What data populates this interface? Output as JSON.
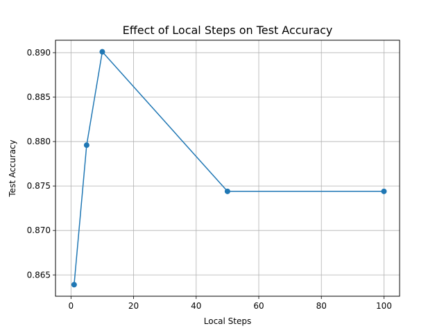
{
  "chart_data": {
    "type": "line",
    "title": "Effect of Local Steps on Test Accuracy",
    "xlabel": "Local Steps",
    "ylabel": "Test Accuracy",
    "xlim": [
      -4.95,
      105.0
    ],
    "ylim": [
      0.8626,
      0.8914
    ],
    "xticks": [
      0,
      20,
      40,
      60,
      80,
      100
    ],
    "yticks": [
      0.865,
      0.87,
      0.875,
      0.88,
      0.885,
      0.89
    ],
    "xtick_labels": [
      "0",
      "20",
      "40",
      "60",
      "80",
      "100"
    ],
    "ytick_labels": [
      "0.865",
      "0.870",
      "0.875",
      "0.880",
      "0.885",
      "0.890"
    ],
    "grid": true,
    "series": [
      {
        "color": "#1f77b4",
        "marker": "circle",
        "x": [
          1,
          5,
          10,
          50,
          100
        ],
        "y": [
          0.8639,
          0.8796,
          0.8901,
          0.8744,
          0.8744
        ]
      }
    ]
  }
}
